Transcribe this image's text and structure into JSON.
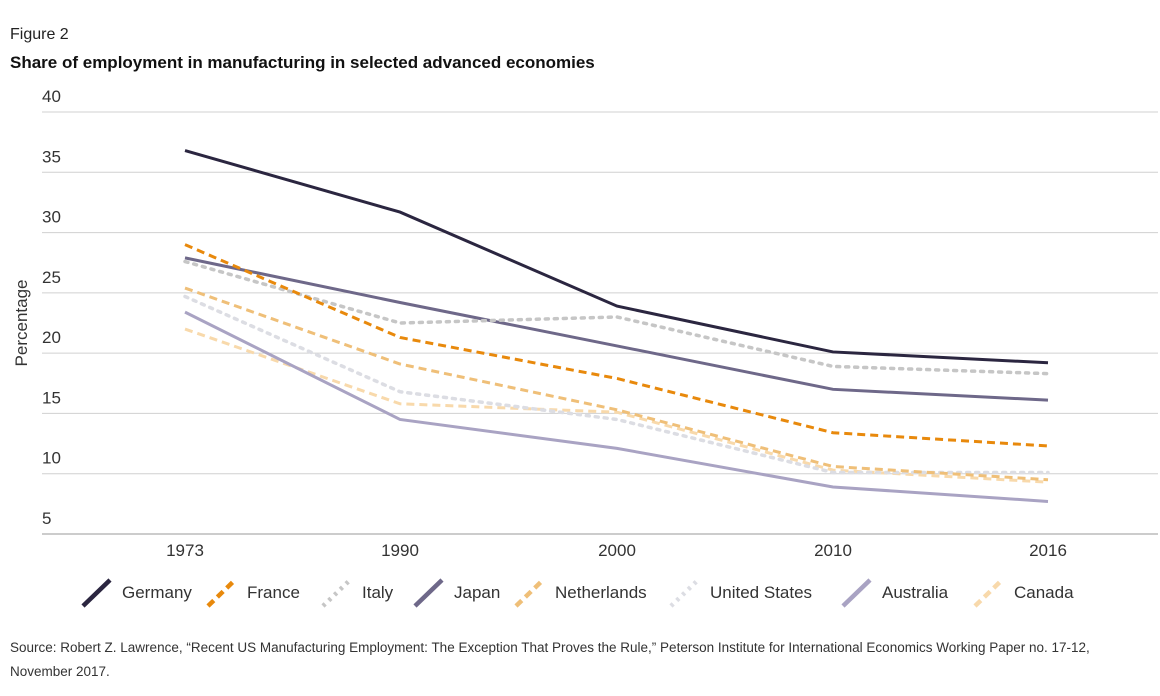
{
  "figure_label": "Figure 2",
  "source": "Source: Robert Z. Lawrence, “Recent US Manufacturing Employment: The Exception That Proves the Rule,” Peterson Institute for International Economics Working Paper no. 17-12, November 2017.",
  "chart_data": {
    "type": "line",
    "title": "Share of employment in manufacturing in selected advanced economies",
    "xlabel": "",
    "ylabel": "Percentage",
    "categories": [
      "1973",
      "1990",
      "2000",
      "2010",
      "2016"
    ],
    "ylim": [
      5,
      40
    ],
    "yticks": [
      40,
      35,
      30,
      25,
      20,
      15,
      10,
      5
    ],
    "grid": true,
    "legend": "bottom",
    "series": [
      {
        "name": "Germany",
        "values": [
          36.8,
          31.7,
          23.9,
          20.1,
          19.2
        ],
        "color": "#2b2640",
        "style": "solid"
      },
      {
        "name": "France",
        "values": [
          29.0,
          21.3,
          17.9,
          13.4,
          12.3
        ],
        "color": "#e8890c",
        "style": "dashed"
      },
      {
        "name": "Italy",
        "values": [
          27.6,
          22.5,
          23.0,
          18.9,
          18.3
        ],
        "color": "#c6c6c6",
        "style": "dotted"
      },
      {
        "name": "Japan",
        "values": [
          27.9,
          24.2,
          20.6,
          17.0,
          16.1
        ],
        "color": "#6e6889",
        "style": "solid"
      },
      {
        "name": "Netherlands",
        "values": [
          25.4,
          19.1,
          15.3,
          10.6,
          9.5
        ],
        "color": "#efbf78",
        "style": "dashed"
      },
      {
        "name": "United States",
        "values": [
          24.7,
          16.8,
          14.5,
          10.1,
          10.1
        ],
        "color": "#dcdde3",
        "style": "dotted"
      },
      {
        "name": "Australia",
        "values": [
          23.4,
          14.5,
          12.1,
          8.9,
          7.7
        ],
        "color": "#a9a3c3",
        "style": "solid"
      },
      {
        "name": "Canada",
        "values": [
          22.0,
          15.8,
          15.1,
          10.3,
          9.3
        ],
        "color": "#f8d9ab",
        "style": "dashed"
      }
    ]
  }
}
